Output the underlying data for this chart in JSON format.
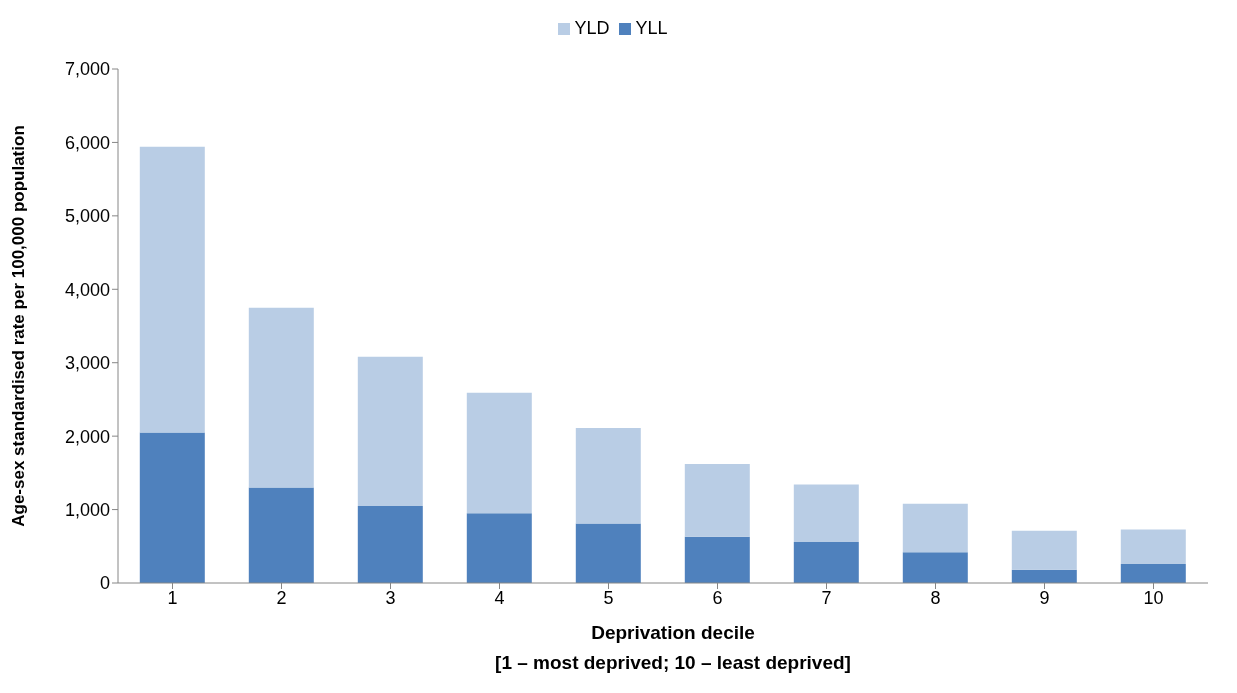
{
  "chart_data": {
    "type": "bar",
    "stacked": true,
    "ylabel": "Age-sex standardised rate per 100,000 population",
    "xlabel": "Deprivation decile\n[1 – most deprived; 10 – least deprived]",
    "categories": [
      "1",
      "2",
      "3",
      "4",
      "5",
      "6",
      "7",
      "8",
      "9",
      "10"
    ],
    "series": [
      {
        "name": "YLL",
        "color": "#4f81bd",
        "values": [
          2050,
          1300,
          1050,
          950,
          810,
          630,
          560,
          420,
          180,
          260
        ]
      },
      {
        "name": "YLD",
        "color": "#b9cde5",
        "values": [
          3890,
          2450,
          2030,
          1640,
          1300,
          990,
          780,
          660,
          530,
          470
        ]
      }
    ],
    "ylim": [
      0,
      7000
    ],
    "yticks": [
      {
        "value": 0,
        "label": "0"
      },
      {
        "value": 1000,
        "label": "1,000"
      },
      {
        "value": 2000,
        "label": "2,000"
      },
      {
        "value": 3000,
        "label": "3,000"
      },
      {
        "value": 4000,
        "label": "4,000"
      },
      {
        "value": 5000,
        "label": "5,000"
      },
      {
        "value": 6000,
        "label": "6,000"
      },
      {
        "value": 7000,
        "label": "7,000"
      }
    ],
    "grid": false,
    "legend": "top"
  }
}
